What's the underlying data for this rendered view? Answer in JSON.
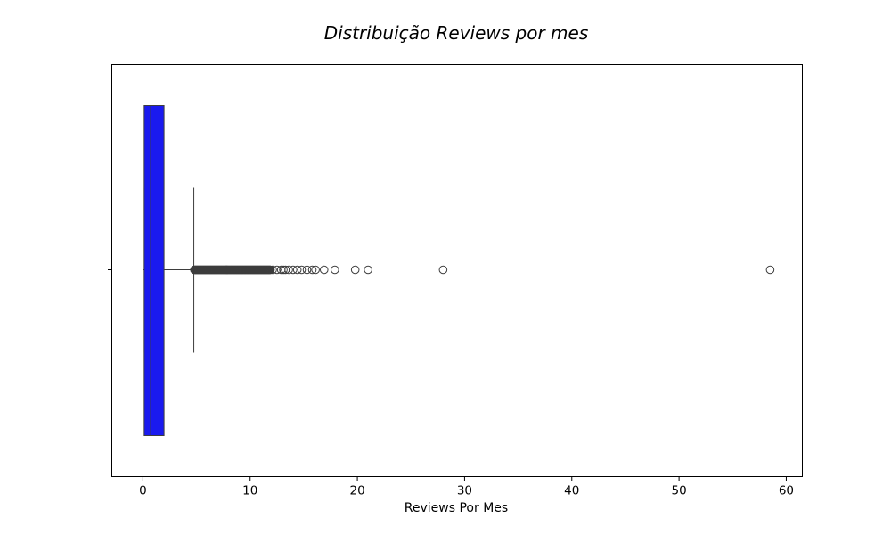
{
  "chart_data": {
    "type": "boxplot",
    "orientation": "horizontal",
    "title": "Distribuição Reviews por mes",
    "xlabel": "Reviews Por Mes",
    "ylabel": "",
    "xlim": [
      -2.9,
      61.5
    ],
    "xticks": [
      0,
      10,
      20,
      30,
      40,
      50,
      60
    ],
    "xtick_labels": [
      "0",
      "10",
      "20",
      "30",
      "40",
      "50",
      "60"
    ],
    "grid": false,
    "legend": "none",
    "box": {
      "whisker_low": 0.01,
      "q1": 0.12,
      "median": 0.72,
      "q3": 1.97,
      "whisker_high": 4.75,
      "fill_color": "#1a1aef",
      "line_color": "#3d3d3d"
    },
    "outliers_dense_range": [
      4.8,
      11.9
    ],
    "outliers": [
      12.1,
      12.5,
      12.9,
      13.1,
      13.3,
      13.6,
      14.0,
      14.4,
      14.8,
      15.3,
      15.8,
      16.1,
      16.9,
      17.9,
      19.8,
      21.0,
      28.0,
      58.5
    ]
  }
}
